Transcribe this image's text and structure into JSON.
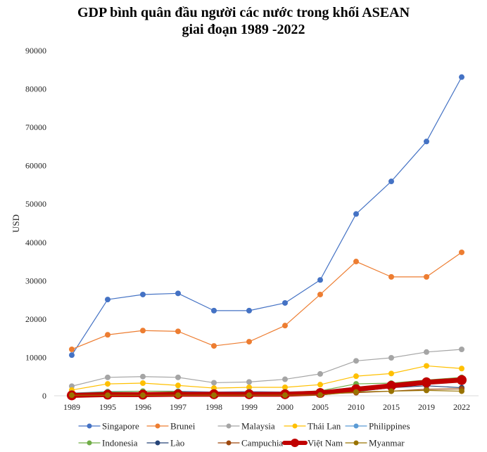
{
  "chart_data": {
    "type": "line",
    "title": "GDP bình quân đầu người các nước trong khối ASEAN",
    "subtitle": "giai đoạn 1989 -2022",
    "xlabel": "",
    "ylabel": "USD",
    "ylim": [
      0,
      90000
    ],
    "yticks": [
      0,
      10000,
      20000,
      30000,
      40000,
      50000,
      60000,
      70000,
      80000,
      90000
    ],
    "grid": false,
    "legend_position": "bottom",
    "categories": [
      "1989",
      "1995",
      "1996",
      "1997",
      "1998",
      "1999",
      "2000",
      "2005",
      "2010",
      "2015",
      "2019",
      "2022"
    ],
    "series": [
      {
        "name": "Singapore",
        "color": "#4472C4",
        "values": [
          10600,
          25100,
          26400,
          26700,
          22200,
          22200,
          24200,
          30200,
          47400,
          55900,
          66300,
          83100
        ]
      },
      {
        "name": "Brunei",
        "color": "#ED7D31",
        "values": [
          12100,
          15900,
          17000,
          16800,
          13000,
          14100,
          18300,
          26400,
          35000,
          31000,
          31000,
          37400
        ]
      },
      {
        "name": "Malaysia",
        "color": "#A5A5A5",
        "values": [
          2500,
          4800,
          5000,
          4800,
          3400,
          3600,
          4300,
          5700,
          9100,
          9900,
          11400,
          12100
        ]
      },
      {
        "name": "Thái Lan",
        "color": "#FFC000",
        "values": [
          1500,
          3100,
          3300,
          2700,
          2000,
          2200,
          2200,
          2900,
          5100,
          5800,
          7800,
          7100
        ]
      },
      {
        "name": "Philippines",
        "color": "#5B9BD5",
        "values": [
          700,
          1100,
          1200,
          1200,
          1000,
          1100,
          1000,
          1200,
          2200,
          2900,
          3500,
          3600
        ]
      },
      {
        "name": "Indonesia",
        "color": "#70AD47",
        "values": [
          600,
          1000,
          1200,
          1100,
          500,
          700,
          800,
          1300,
          3100,
          3300,
          4100,
          4800
        ]
      },
      {
        "name": "Lào",
        "color": "#264478",
        "values": [
          200,
          400,
          400,
          400,
          300,
          300,
          300,
          500,
          1100,
          2100,
          2600,
          2100
        ]
      },
      {
        "name": "Campuchia",
        "color": "#9E480E",
        "values": [
          150,
          300,
          300,
          300,
          250,
          300,
          300,
          500,
          800,
          1200,
          1700,
          1800
        ]
      },
      {
        "name": "Việt Nam",
        "color": "#C00000",
        "values": [
          100,
          300,
          300,
          400,
          400,
          400,
          400,
          700,
          1700,
          2600,
          3500,
          4100
        ]
      },
      {
        "name": "Myanmar",
        "color": "#997300",
        "values": [
          150,
          150,
          150,
          150,
          150,
          150,
          150,
          200,
          1000,
          1200,
          1400,
          1200
        ]
      }
    ]
  }
}
